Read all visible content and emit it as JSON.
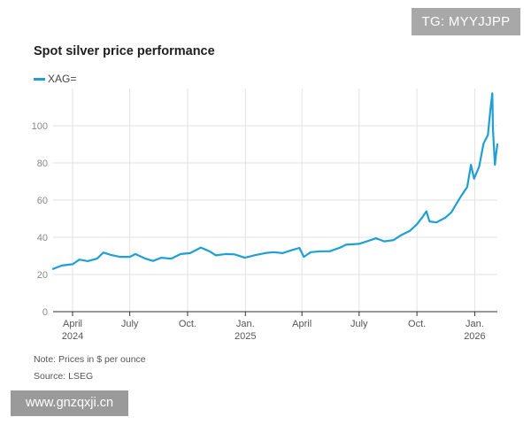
{
  "watermarks": {
    "top": "TG: MYYJJPP",
    "bottom": "www.gnzqxji.cn"
  },
  "colors": {
    "series": "#1f9fd3",
    "grid": "#e2e2e2",
    "axis": "#333333"
  },
  "chart_data": {
    "type": "line",
    "title": "Spot silver price performance",
    "legend": [
      "XAG="
    ],
    "legend_position": "top-left",
    "grid": "horizontal",
    "ylim": [
      0,
      120
    ],
    "yticks": [
      0,
      20,
      40,
      60,
      80,
      100
    ],
    "xlim": [
      "2024-03-01",
      "2026-02-06"
    ],
    "xticks": [
      {
        "date": "2024-04-01",
        "label": "April",
        "sub": "2024"
      },
      {
        "date": "2024-07-01",
        "label": "July",
        "sub": ""
      },
      {
        "date": "2024-10-01",
        "label": "Oct.",
        "sub": ""
      },
      {
        "date": "2025-01-01",
        "label": "Jan.",
        "sub": "2025"
      },
      {
        "date": "2025-04-01",
        "label": "April",
        "sub": ""
      },
      {
        "date": "2025-07-01",
        "label": "July",
        "sub": ""
      },
      {
        "date": "2025-10-01",
        "label": "Oct.",
        "sub": ""
      },
      {
        "date": "2026-01-01",
        "label": "Jan.",
        "sub": "2026"
      }
    ],
    "series": [
      {
        "name": "XAG=",
        "points": [
          [
            "2024-03-01",
            23.0
          ],
          [
            "2024-03-15",
            24.8
          ],
          [
            "2024-04-01",
            25.5
          ],
          [
            "2024-04-12",
            28.0
          ],
          [
            "2024-04-25",
            27.2
          ],
          [
            "2024-05-10",
            28.5
          ],
          [
            "2024-05-20",
            31.8
          ],
          [
            "2024-06-01",
            30.5
          ],
          [
            "2024-06-15",
            29.5
          ],
          [
            "2024-07-01",
            29.5
          ],
          [
            "2024-07-10",
            31.0
          ],
          [
            "2024-07-25",
            28.6
          ],
          [
            "2024-08-07",
            27.3
          ],
          [
            "2024-08-20",
            29.0
          ],
          [
            "2024-09-05",
            28.5
          ],
          [
            "2024-09-20",
            31.0
          ],
          [
            "2024-10-05",
            31.5
          ],
          [
            "2024-10-22",
            34.5
          ],
          [
            "2024-11-05",
            32.5
          ],
          [
            "2024-11-15",
            30.3
          ],
          [
            "2024-12-01",
            31.0
          ],
          [
            "2024-12-15",
            30.8
          ],
          [
            "2024-12-31",
            29.0
          ],
          [
            "2025-01-15",
            30.3
          ],
          [
            "2025-02-01",
            31.5
          ],
          [
            "2025-02-15",
            32.0
          ],
          [
            "2025-03-01",
            31.5
          ],
          [
            "2025-03-15",
            33.0
          ],
          [
            "2025-03-28",
            34.3
          ],
          [
            "2025-04-04",
            29.5
          ],
          [
            "2025-04-15",
            32.0
          ],
          [
            "2025-05-01",
            32.5
          ],
          [
            "2025-05-15",
            32.5
          ],
          [
            "2025-06-01",
            34.5
          ],
          [
            "2025-06-10",
            36.0
          ],
          [
            "2025-07-01",
            36.5
          ],
          [
            "2025-07-15",
            38.0
          ],
          [
            "2025-07-28",
            39.5
          ],
          [
            "2025-08-10",
            37.8
          ],
          [
            "2025-08-25",
            38.5
          ],
          [
            "2025-09-05",
            41.0
          ],
          [
            "2025-09-20",
            43.5
          ],
          [
            "2025-10-01",
            47.0
          ],
          [
            "2025-10-10",
            51.0
          ],
          [
            "2025-10-16",
            54.0
          ],
          [
            "2025-10-21",
            48.5
          ],
          [
            "2025-11-01",
            48.0
          ],
          [
            "2025-11-15",
            50.5
          ],
          [
            "2025-11-25",
            53.5
          ],
          [
            "2025-12-01",
            57.0
          ],
          [
            "2025-12-10",
            62.0
          ],
          [
            "2025-12-20",
            67.0
          ],
          [
            "2025-12-26",
            79.0
          ],
          [
            "2025-12-31",
            71.5
          ],
          [
            "2026-01-08",
            78.0
          ],
          [
            "2026-01-15",
            90.5
          ],
          [
            "2026-01-22",
            95.0
          ],
          [
            "2026-01-26",
            109.0
          ],
          [
            "2026-01-29",
            117.5
          ],
          [
            "2026-01-30",
            98.0
          ],
          [
            "2026-02-02",
            79.0
          ],
          [
            "2026-02-04",
            85.0
          ],
          [
            "2026-02-06",
            90.0
          ]
        ]
      }
    ],
    "note": "Note: Prices in $ per ounce",
    "source": "Source: LSEG"
  }
}
